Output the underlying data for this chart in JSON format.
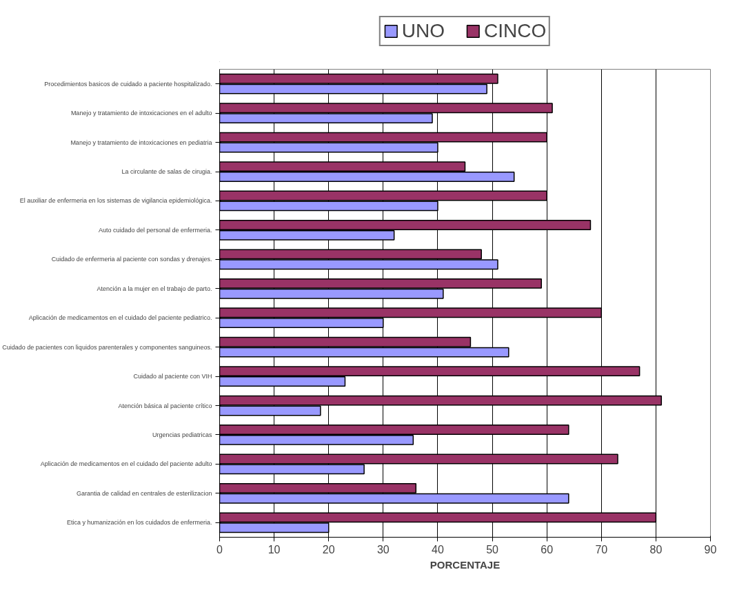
{
  "chart_data": {
    "type": "bar",
    "orientation": "horizontal",
    "xlabel": "PORCENTAJE",
    "categories": [
      "Procedimientos basicos de cuidado a paciente hospitalizado.",
      "Manejo y tratamiento de intoxicaciones en el adulto",
      "Manejo y tratamiento de intoxicaciones en pediatria",
      "La circulante de salas de cirugia.",
      "El auxiliar de enfermeria en los sistemas de vigilancia epidemiológica.",
      "Auto cuidado del personal de enfermeria.",
      "Cuidado de enfermeria al paciente con sondas y drenajes.",
      "Atención a la mujer en el trabajo de parto.",
      "Aplicación de medicamentos en el cuidado del paciente pediatrico.",
      "Cuidado de pacientes con liquidos parenterales y componentes sanguineos.",
      "Cuidado al paciente con VIH",
      "Atención básica al paciente crítico",
      "Urgencias pediatricas",
      "Aplicación de medicamentos en el cuidado del paciente adulto",
      "Garantia de calidad en centrales de esterilizacion",
      "Etica y humanización en los cuidados de enfermeria."
    ],
    "series": [
      {
        "name": "UNO",
        "color": "#9999ff",
        "values": [
          49,
          39,
          40,
          54,
          40,
          32,
          51,
          41,
          30,
          53,
          23,
          18.5,
          35.5,
          26.5,
          64,
          20
        ]
      },
      {
        "name": "CINCO",
        "color": "#993366",
        "values": [
          51,
          61,
          60,
          45,
          60,
          68,
          48,
          59,
          70,
          46,
          77,
          81,
          64,
          73,
          36,
          80
        ]
      }
    ],
    "xlim": [
      0,
      90
    ],
    "xticks": [
      0,
      10,
      20,
      30,
      40,
      50,
      60,
      70,
      80,
      90
    ],
    "grid": "x",
    "legend": "top"
  }
}
